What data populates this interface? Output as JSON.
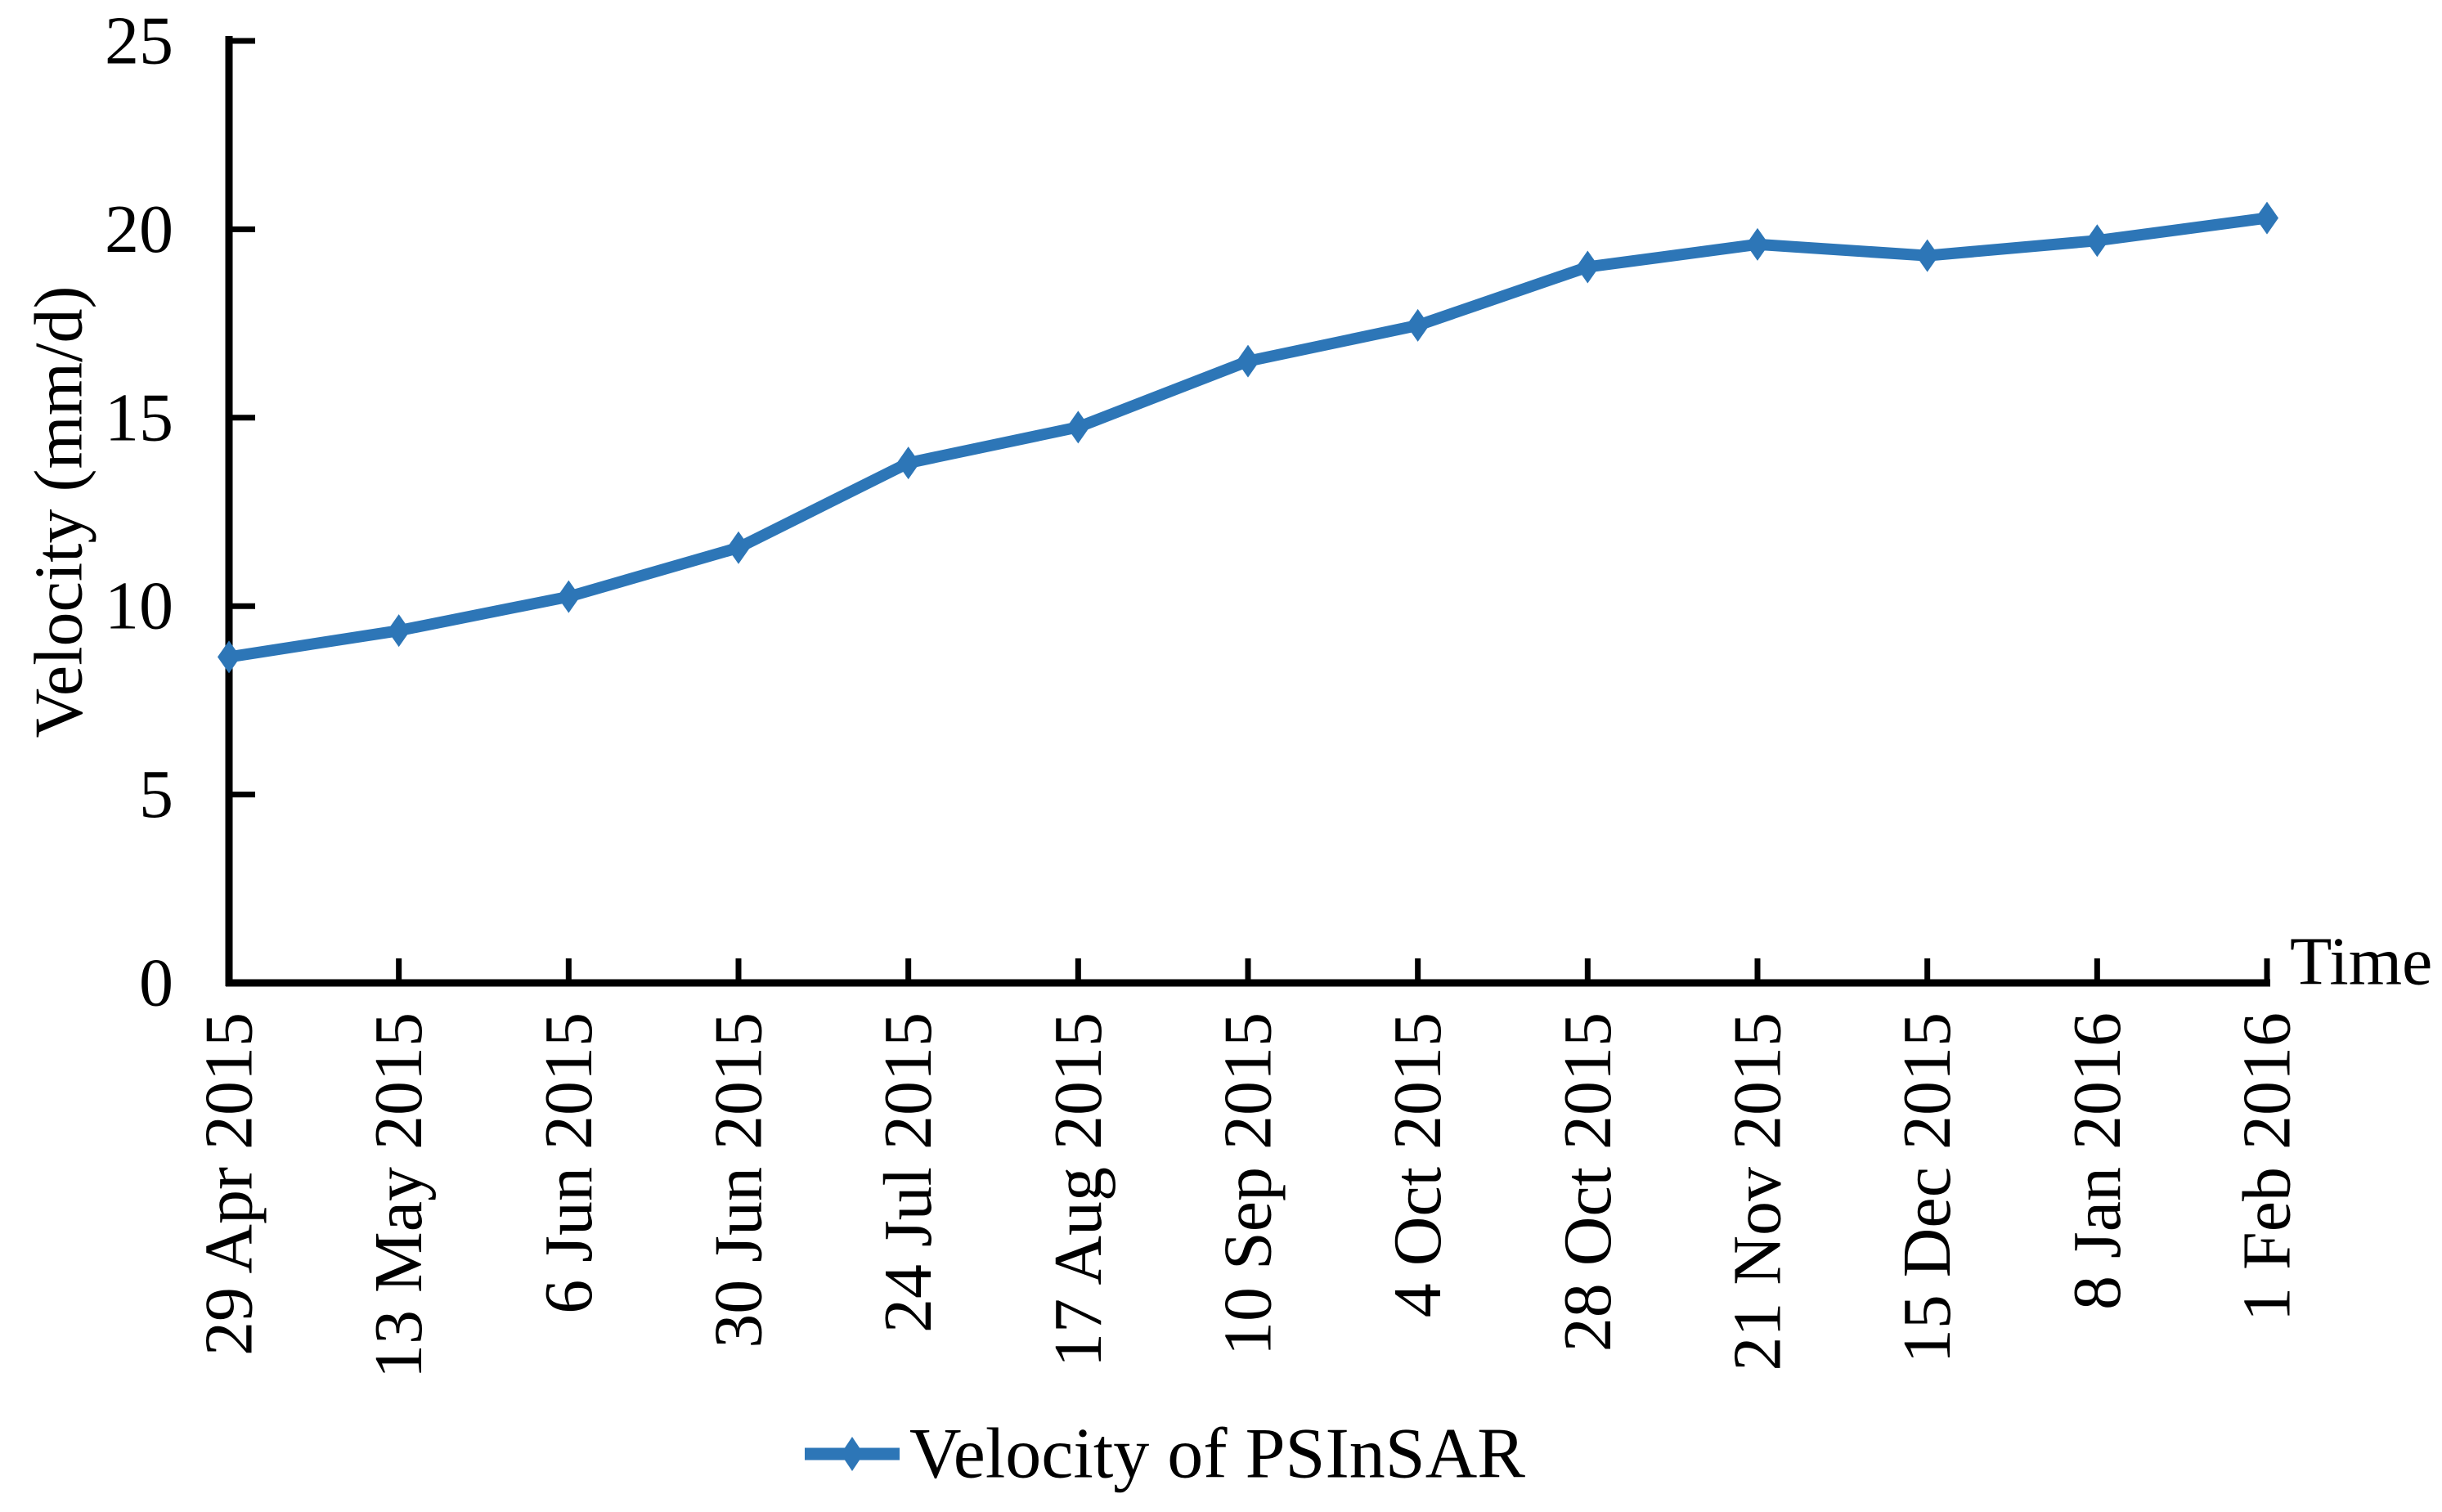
{
  "chart_data": {
    "type": "line",
    "title": "",
    "xlabel": "Time",
    "ylabel": "Velocity (mm/d)",
    "ylim": [
      0,
      25
    ],
    "yticks": [
      0,
      5,
      10,
      15,
      20,
      25
    ],
    "grid": false,
    "legend_position": "bottom-center",
    "categories": [
      "29 Apr 2015",
      "13 May 2015",
      "6 Jun 2015",
      "30 Jun 2015",
      "24 Jul 2015",
      "17 Aug 2015",
      "10 Sep 2015",
      "4 Oct 2015",
      "28 Oct 2015",
      "21 Nov 2015",
      "15 Dec 2015",
      "8 Jan 2016",
      "1 Feb 2016"
    ],
    "series": [
      {
        "name": "Velocity of PSInSAR",
        "marker": "diamond",
        "color": "#2D76B7",
        "values": [
          8.65,
          9.35,
          10.25,
          11.55,
          13.8,
          14.75,
          16.5,
          17.45,
          19.0,
          19.6,
          19.3,
          19.7,
          20.3
        ]
      }
    ]
  },
  "colors": {
    "background": "#FFFFFF",
    "axis": "#000000",
    "text": "#000000",
    "line": "#2D76B7"
  }
}
